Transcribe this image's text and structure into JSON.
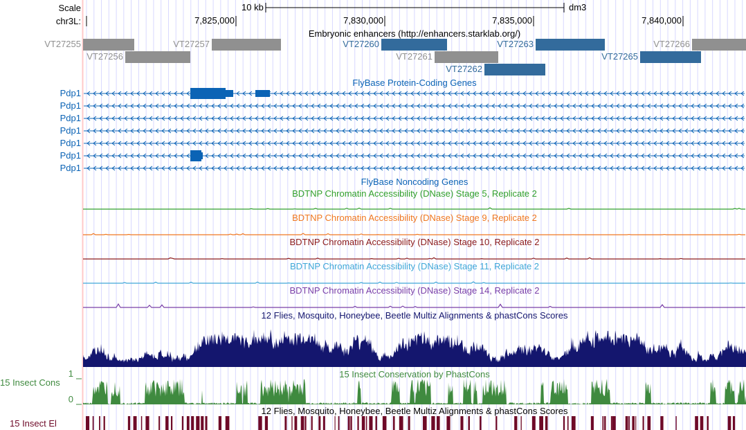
{
  "ruler": {
    "scale_label": "Scale",
    "scale_value": "10 kb",
    "assembly": "dm3",
    "chrom_label": "chr3L:",
    "ticks": [
      "7,825,000",
      "7,830,000",
      "7,835,000",
      "7,840,000"
    ]
  },
  "colors": {
    "grid": "#d8d8ff",
    "left_border": "#ffc8c8",
    "enh_gray": "#909090",
    "enh_blue": "#336b9c",
    "gene": "#0b63b5",
    "stage5": "#32a02c",
    "stage9": "#f07820",
    "stage10": "#8b1a1a",
    "stage11": "#40a8d8",
    "stage14": "#7a40a8",
    "multiz": "#14166e",
    "cons": "#3f8a3f",
    "elements": "#6e0a28"
  },
  "enhancers": {
    "title": "Embryonic enhancers (http://enhancers.starklab.org/)",
    "items": [
      {
        "name": "VT27255",
        "color": "gray"
      },
      {
        "name": "VT27256",
        "color": "gray"
      },
      {
        "name": "VT27257",
        "color": "gray"
      },
      {
        "name": "VT27260",
        "color": "blue"
      },
      {
        "name": "VT27261",
        "color": "gray"
      },
      {
        "name": "VT27262",
        "color": "blue"
      },
      {
        "name": "VT27263",
        "color": "blue"
      },
      {
        "name": "VT27265",
        "color": "blue"
      },
      {
        "name": "VT27266",
        "color": "gray"
      }
    ]
  },
  "genes": {
    "title": "FlyBase Protein-Coding Genes",
    "items": [
      "Pdp1",
      "Pdp1",
      "Pdp1",
      "Pdp1",
      "Pdp1",
      "Pdp1",
      "Pdp1"
    ]
  },
  "noncoding": {
    "title": "FlyBase Noncoding Genes"
  },
  "dnase": [
    {
      "title": "BDTNP Chromatin Accessibility (DNase) Stage 5, Replicate 2"
    },
    {
      "title": "BDTNP Chromatin Accessibility (DNase) Stage 9, Replicate 2"
    },
    {
      "title": "BDTNP Chromatin Accessibility (DNase) Stage 10, Replicate 2"
    },
    {
      "title": "BDTNP Chromatin Accessibility (DNase) Stage 11, Replicate 2"
    },
    {
      "title": "BDTNP Chromatin Accessibility (DNase) Stage 14, Replicate 2"
    }
  ],
  "multiz": {
    "title": "12 Flies, Mosquito, Honeybee, Beetle Multiz Alignments & phastCons Scores"
  },
  "cons": {
    "title": "15 Insect Conservation by PhastCons",
    "label": "15 Insect Cons",
    "ymax": "1",
    "ymin": "0"
  },
  "elements": {
    "title": "12 Flies, Mosquito, Honeybee, Beetle Multiz Alignments & phastCons Scores",
    "label": "15 Insect El"
  }
}
